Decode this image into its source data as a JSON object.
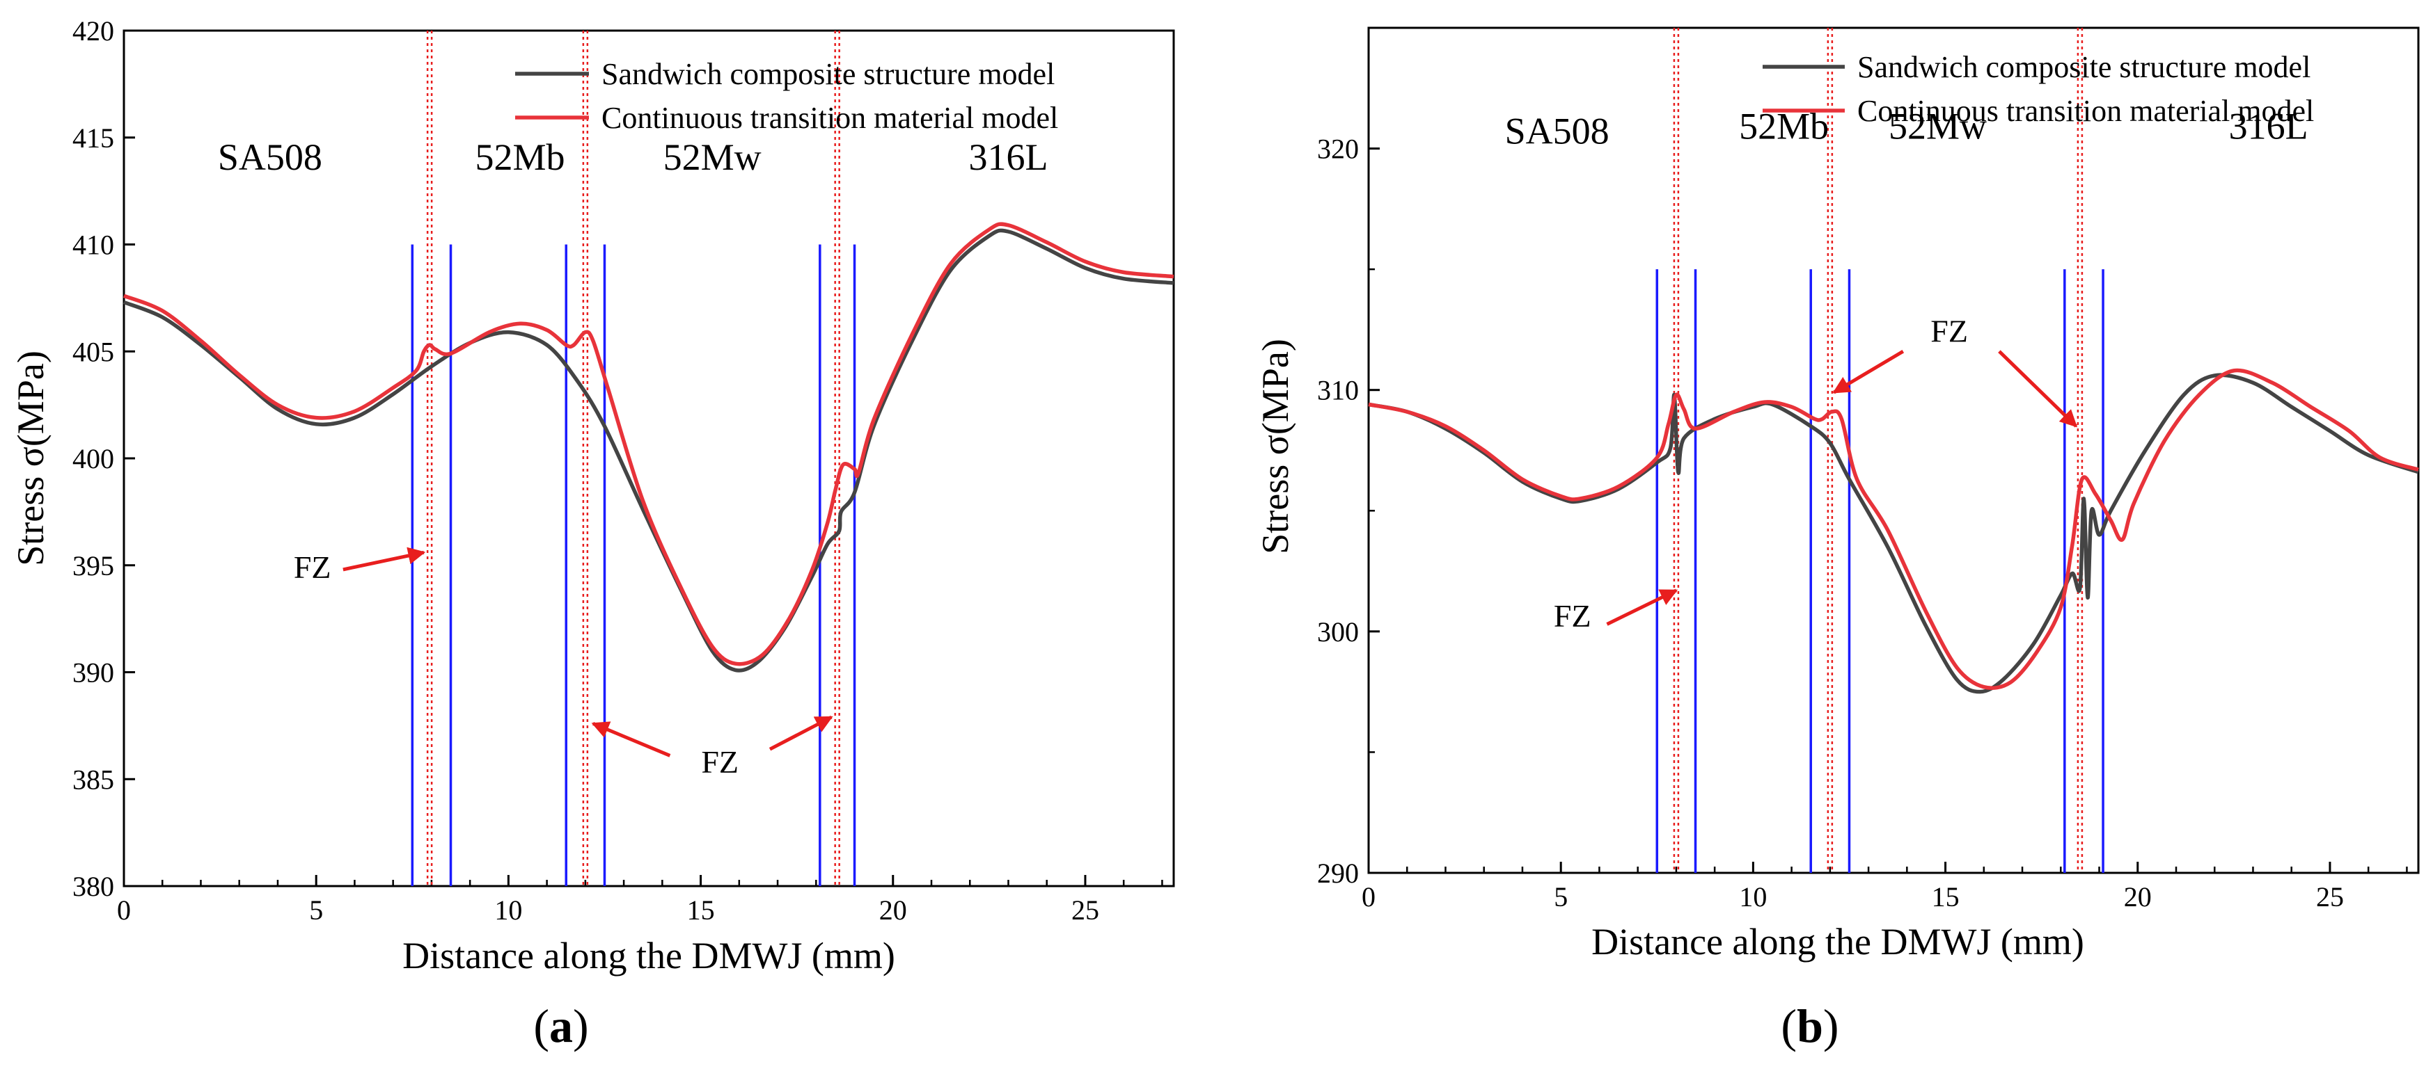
{
  "chart_data": [
    {
      "panel_label": "(a)",
      "panel_letter": "a",
      "type": "line",
      "xlabel": "Distance along the DMWJ (mm)",
      "ylabel": "Stress σ(MPa)",
      "xlim": [
        0,
        27.3
      ],
      "ylim": [
        380,
        420
      ],
      "xticks": [
        0,
        5,
        10,
        15,
        20,
        25
      ],
      "yticks": [
        380,
        385,
        390,
        395,
        400,
        405,
        410,
        415,
        420
      ],
      "boundaries": [
        7.5,
        8.5,
        11.5,
        12.5,
        18.1,
        19.0
      ],
      "boundary_top": 410,
      "fusion_lines": [
        7.95,
        12.0,
        18.55
      ],
      "regions": [
        {
          "name": "SA508",
          "x": 3.8,
          "y": 413.5
        },
        {
          "name": "52Mb",
          "x": 10.3,
          "y": 413.5
        },
        {
          "name": "52Mw",
          "x": 15.3,
          "y": 413.5
        },
        {
          "name": "316L",
          "x": 23.0,
          "y": 413.5
        }
      ],
      "annotations": [
        {
          "text": "FZ",
          "x": 4.9,
          "y": 394.4,
          "arrow_from": [
            5.7,
            394.8
          ],
          "arrow_to": [
            7.8,
            395.6
          ]
        },
        {
          "text": "FZ",
          "x": 15.5,
          "y": 385.3,
          "arrow_from": [
            14.2,
            386.1
          ],
          "arrow_to": [
            12.2,
            387.6
          ]
        },
        {
          "text": "FZ",
          "x": 15.5,
          "y": 385.3,
          "arrow_from": [
            16.8,
            386.4
          ],
          "arrow_to": [
            18.4,
            387.9
          ]
        }
      ],
      "legend": {
        "position": "top-right"
      },
      "series": [
        {
          "name": "Sandwich composite structure model",
          "color": "#444444",
          "points": [
            [
              0,
              407.3
            ],
            [
              1,
              406.6
            ],
            [
              2,
              405.3
            ],
            [
              3,
              403.8
            ],
            [
              4,
              402.3
            ],
            [
              5,
              401.6
            ],
            [
              6,
              401.9
            ],
            [
              7,
              403.0
            ],
            [
              8,
              404.3
            ],
            [
              9,
              405.4
            ],
            [
              10,
              405.9
            ],
            [
              11,
              405.3
            ],
            [
              11.8,
              403.6
            ],
            [
              12.5,
              401.5
            ],
            [
              13.5,
              397.6
            ],
            [
              14.5,
              393.8
            ],
            [
              15.3,
              391.0
            ],
            [
              15.9,
              390.1
            ],
            [
              16.5,
              390.5
            ],
            [
              17.2,
              392.1
            ],
            [
              17.9,
              394.5
            ],
            [
              18.3,
              396.0
            ],
            [
              18.6,
              396.6
            ],
            [
              18.65,
              397.5
            ],
            [
              19.0,
              398.4
            ],
            [
              19.5,
              401.5
            ],
            [
              20.5,
              405.5
            ],
            [
              21.5,
              408.8
            ],
            [
              22.5,
              410.4
            ],
            [
              23.0,
              410.6
            ],
            [
              24,
              409.8
            ],
            [
              25,
              408.9
            ],
            [
              26,
              408.4
            ],
            [
              27.3,
              408.2
            ]
          ]
        },
        {
          "name": "Continuous transition material model",
          "color": "#e8333a",
          "points": [
            [
              0,
              407.6
            ],
            [
              1,
              406.9
            ],
            [
              2,
              405.5
            ],
            [
              3,
              403.9
            ],
            [
              4,
              402.5
            ],
            [
              5,
              401.9
            ],
            [
              6,
              402.2
            ],
            [
              7,
              403.3
            ],
            [
              7.6,
              404.1
            ],
            [
              7.8,
              405.0
            ],
            [
              7.95,
              405.3
            ],
            [
              8.1,
              405.1
            ],
            [
              8.5,
              404.9
            ],
            [
              9.5,
              405.9
            ],
            [
              10.3,
              406.3
            ],
            [
              11.0,
              406.0
            ],
            [
              11.5,
              405.3
            ],
            [
              11.7,
              405.3
            ],
            [
              12.0,
              405.9
            ],
            [
              12.2,
              405.5
            ],
            [
              12.6,
              403.2
            ],
            [
              13.5,
              398.0
            ],
            [
              14.5,
              393.9
            ],
            [
              15.3,
              391.2
            ],
            [
              15.9,
              390.4
            ],
            [
              16.6,
              390.8
            ],
            [
              17.3,
              392.5
            ],
            [
              17.9,
              394.8
            ],
            [
              18.3,
              397.0
            ],
            [
              18.5,
              398.5
            ],
            [
              18.7,
              399.7
            ],
            [
              19.0,
              399.5
            ],
            [
              19.1,
              399.3
            ],
            [
              19.5,
              401.8
            ],
            [
              20.5,
              405.8
            ],
            [
              21.5,
              409.1
            ],
            [
              22.5,
              410.7
            ],
            [
              23.0,
              410.9
            ],
            [
              24,
              410.1
            ],
            [
              25,
              409.2
            ],
            [
              26,
              408.7
            ],
            [
              27.3,
              408.5
            ]
          ]
        }
      ]
    },
    {
      "panel_label": "(b)",
      "panel_letter": "b",
      "type": "line",
      "xlabel": "Distance along the DMWJ (mm)",
      "ylabel": "Stress σ(MPa)",
      "xlim": [
        0,
        27.3
      ],
      "ylim": [
        290,
        325
      ],
      "xticks": [
        0,
        5,
        10,
        15,
        20,
        25
      ],
      "yticks": [
        290,
        300,
        310,
        320
      ],
      "yticks_minor": [
        295,
        305,
        315,
        325
      ],
      "boundaries": [
        7.5,
        8.5,
        11.5,
        12.5,
        18.1,
        19.1
      ],
      "boundary_top": 315,
      "fusion_lines": [
        8.0,
        12.0,
        18.5
      ],
      "regions": [
        {
          "name": "SA508",
          "x": 4.9,
          "y": 320.2
        },
        {
          "name": "52Mb",
          "x": 10.8,
          "y": 320.4
        },
        {
          "name": "52Mw",
          "x": 14.8,
          "y": 320.4
        },
        {
          "name": "316L",
          "x": 23.4,
          "y": 320.4
        }
      ],
      "annotations": [
        {
          "text": "FZ",
          "x": 15.1,
          "y": 312.0,
          "arrow_from": [
            13.9,
            311.6
          ],
          "arrow_to": [
            12.1,
            309.9
          ]
        },
        {
          "text": "FZ",
          "x": 15.1,
          "y": 312.0,
          "arrow_from": [
            16.4,
            311.6
          ],
          "arrow_to": [
            18.4,
            308.5
          ]
        },
        {
          "text": "FZ",
          "x": 5.3,
          "y": 300.2,
          "arrow_from": [
            6.2,
            300.3
          ],
          "arrow_to": [
            8.0,
            301.7
          ]
        }
      ],
      "legend": {
        "position": "top-right"
      },
      "series": [
        {
          "name": "Sandwich composite  structure model",
          "color": "#444444",
          "points": [
            [
              0,
              309.4
            ],
            [
              1,
              309.1
            ],
            [
              2,
              308.4
            ],
            [
              3,
              307.4
            ],
            [
              4,
              306.2
            ],
            [
              5,
              305.5
            ],
            [
              5.5,
              305.4
            ],
            [
              6.5,
              305.9
            ],
            [
              7.5,
              307.0
            ],
            [
              7.85,
              307.6
            ],
            [
              7.95,
              309.8
            ],
            [
              8.05,
              306.6
            ],
            [
              8.2,
              308.0
            ],
            [
              9,
              308.8
            ],
            [
              10,
              309.3
            ],
            [
              10.5,
              309.4
            ],
            [
              11.5,
              308.5
            ],
            [
              12,
              307.8
            ],
            [
              12.5,
              306.3
            ],
            [
              13.5,
              303.5
            ],
            [
              14.5,
              300.2
            ],
            [
              15.3,
              298.0
            ],
            [
              15.9,
              297.5
            ],
            [
              16.5,
              298.0
            ],
            [
              17.3,
              299.5
            ],
            [
              18.0,
              301.5
            ],
            [
              18.3,
              302.4
            ],
            [
              18.5,
              301.8
            ],
            [
              18.6,
              305.5
            ],
            [
              18.7,
              301.4
            ],
            [
              18.8,
              305.0
            ],
            [
              19.0,
              304.0
            ],
            [
              19.3,
              305.0
            ],
            [
              20.2,
              307.5
            ],
            [
              21.2,
              309.8
            ],
            [
              22.0,
              310.6
            ],
            [
              23,
              310.3
            ],
            [
              24,
              309.3
            ],
            [
              25,
              308.3
            ],
            [
              26,
              307.3
            ],
            [
              27.3,
              306.6
            ]
          ]
        },
        {
          "name": "Continuous transition material model",
          "color": "#e8333a",
          "points": [
            [
              0,
              309.4
            ],
            [
              1,
              309.1
            ],
            [
              2,
              308.5
            ],
            [
              3,
              307.5
            ],
            [
              4,
              306.3
            ],
            [
              5,
              305.6
            ],
            [
              5.5,
              305.5
            ],
            [
              6.5,
              306.0
            ],
            [
              7.5,
              307.2
            ],
            [
              7.8,
              308.6
            ],
            [
              8.0,
              309.8
            ],
            [
              8.2,
              309.2
            ],
            [
              8.5,
              308.4
            ],
            [
              9.5,
              309.1
            ],
            [
              10.3,
              309.5
            ],
            [
              11.0,
              309.3
            ],
            [
              11.6,
              308.8
            ],
            [
              11.8,
              308.8
            ],
            [
              12.05,
              309.1
            ],
            [
              12.3,
              308.8
            ],
            [
              12.7,
              306.3
            ],
            [
              13.5,
              304.2
            ],
            [
              14.5,
              300.8
            ],
            [
              15.3,
              298.5
            ],
            [
              16.0,
              297.7
            ],
            [
              16.7,
              297.9
            ],
            [
              17.4,
              299.2
            ],
            [
              18.0,
              301.0
            ],
            [
              18.3,
              303.6
            ],
            [
              18.55,
              306.3
            ],
            [
              18.9,
              305.7
            ],
            [
              19.3,
              304.6
            ],
            [
              19.6,
              303.8
            ],
            [
              19.9,
              305.3
            ],
            [
              20.7,
              307.9
            ],
            [
              21.6,
              309.8
            ],
            [
              22.5,
              310.8
            ],
            [
              23.5,
              310.3
            ],
            [
              24.5,
              309.3
            ],
            [
              25.5,
              308.3
            ],
            [
              26.3,
              307.2
            ],
            [
              27.3,
              306.7
            ]
          ]
        }
      ]
    }
  ]
}
